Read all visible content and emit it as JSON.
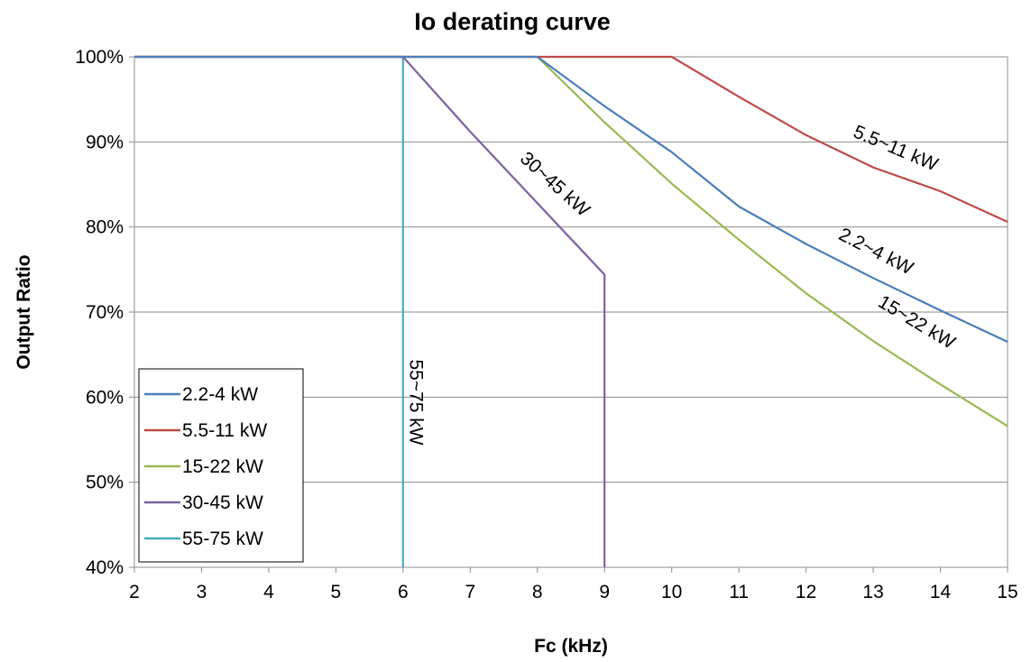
{
  "chart_data": {
    "type": "line",
    "title": "Io derating curve",
    "xlabel": "Fc (kHz)",
    "ylabel": "Output Ratio",
    "xlim": [
      2,
      15
    ],
    "ylim": [
      40,
      100
    ],
    "x_ticks": [
      "2",
      "3",
      "4",
      "5",
      "6",
      "7",
      "8",
      "9",
      "10",
      "11",
      "12",
      "13",
      "14",
      "15"
    ],
    "y_ticks": [
      "40%",
      "50%",
      "60%",
      "70%",
      "80%",
      "90%",
      "100%"
    ],
    "grid": "horizontal",
    "legend_position": "bottom-left",
    "series": [
      {
        "name": "2.2-4 kW",
        "color": "#4a7ebb",
        "x": [
          2,
          8,
          9,
          10,
          11,
          12,
          13,
          14,
          15
        ],
        "y": [
          100,
          100,
          94.2,
          88.8,
          82.4,
          78,
          74,
          70.2,
          66.5
        ]
      },
      {
        "name": "5.5-11 kW",
        "color": "#be4b48",
        "x": [
          2,
          10,
          11,
          12,
          13,
          14,
          15
        ],
        "y": [
          100,
          100,
          95.3,
          90.8,
          87,
          84.2,
          80.6
        ]
      },
      {
        "name": "15-22 kW",
        "color": "#98b954",
        "x": [
          2,
          8,
          9,
          10,
          11,
          12,
          13,
          14,
          15
        ],
        "y": [
          100,
          100,
          92.3,
          85.1,
          78.5,
          72.2,
          66.6,
          61.5,
          56.6
        ]
      },
      {
        "name": "30-45 kW",
        "color": "#7d60a0",
        "x": [
          2,
          6,
          7,
          8,
          9,
          9
        ],
        "y": [
          100,
          100,
          91.2,
          82.8,
          74.4,
          40
        ]
      },
      {
        "name": "55-75 kW",
        "color": "#46aac5",
        "x": [
          2,
          6,
          6
        ],
        "y": [
          100,
          100,
          40
        ]
      }
    ],
    "annotations": [
      {
        "text": "5.5~11 kW",
        "x": 13.3,
        "y": 88.6,
        "angle": 23
      },
      {
        "text": "2.2~4 kW",
        "x": 13.0,
        "y": 76.5,
        "angle": 27
      },
      {
        "text": "15~22 kW",
        "x": 13.6,
        "y": 68.2,
        "angle": 31
      },
      {
        "text": "30~45 kW",
        "x": 8.2,
        "y": 84.5,
        "angle": 42
      },
      {
        "text": "55~75 kW",
        "x": 6.1,
        "y": 59.4,
        "angle": 90
      }
    ]
  }
}
